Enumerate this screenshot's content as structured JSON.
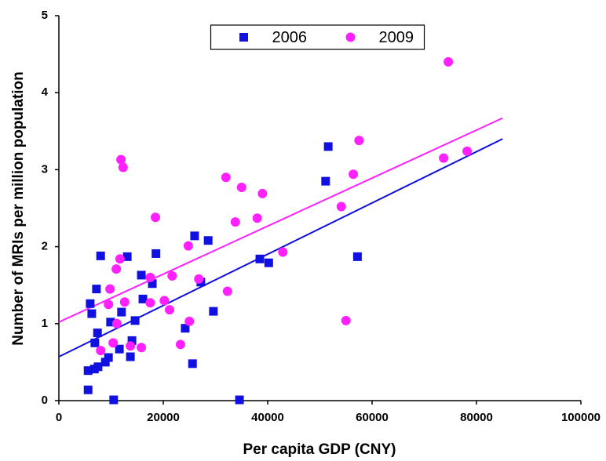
{
  "chart_data": {
    "type": "scatter",
    "x_label": "Per capita GDP (CNY)",
    "y_label": "Number of MRIs per million population",
    "xlim": [
      0,
      100000
    ],
    "ylim": [
      0,
      5
    ],
    "xticks": [
      0,
      20000,
      40000,
      60000,
      80000,
      100000
    ],
    "yticks": [
      0,
      1,
      2,
      3,
      4,
      5
    ],
    "grid": false,
    "legend_position": "top-center",
    "series": [
      {
        "name": "2006",
        "color": "#1010e0",
        "marker": "square",
        "x": [
          5600,
          5600,
          6000,
          6300,
          6800,
          6900,
          7200,
          7400,
          7500,
          8000,
          8900,
          9500,
          9900,
          10500,
          11600,
          12000,
          13100,
          13700,
          14000,
          14600,
          15800,
          16100,
          17900,
          18600,
          24200,
          25600,
          26000,
          27200,
          28600,
          29600,
          34600,
          38500,
          40200,
          51100,
          51600,
          57200
        ],
        "values": [
          0.14,
          0.39,
          1.26,
          1.13,
          0.41,
          0.75,
          1.45,
          0.88,
          0.44,
          1.88,
          0.5,
          0.56,
          1.02,
          0.01,
          0.67,
          1.15,
          1.87,
          0.57,
          0.78,
          1.04,
          1.63,
          1.32,
          1.52,
          1.91,
          0.94,
          0.48,
          2.14,
          1.54,
          2.08,
          1.16,
          0.01,
          1.84,
          1.79,
          2.85,
          3.3,
          1.87
        ]
      },
      {
        "name": "2009",
        "color": "#ff20ff",
        "marker": "circle",
        "x": [
          8000,
          9500,
          9800,
          10400,
          11000,
          11100,
          11700,
          11900,
          12300,
          12600,
          13700,
          15800,
          17500,
          17500,
          18500,
          20200,
          21200,
          21700,
          23300,
          24800,
          25000,
          26800,
          32000,
          32300,
          33800,
          35000,
          38000,
          39000,
          42900,
          54100,
          55000,
          56400,
          57500,
          73700,
          74600,
          78200
        ],
        "values": [
          0.65,
          1.25,
          1.45,
          0.75,
          1.71,
          1.0,
          1.84,
          3.13,
          3.03,
          1.28,
          0.71,
          0.69,
          1.6,
          1.27,
          2.38,
          1.3,
          1.18,
          1.62,
          0.73,
          2.01,
          1.03,
          1.58,
          2.9,
          1.42,
          2.32,
          2.77,
          2.37,
          2.69,
          1.93,
          2.52,
          1.04,
          2.94,
          3.38,
          3.15,
          4.4,
          3.24
        ]
      }
    ],
    "trend_lines": [
      {
        "color": "#1010e0",
        "x": [
          0,
          85000
        ],
        "values": [
          0.57,
          3.4
        ]
      },
      {
        "color": "#ff20ff",
        "x": [
          0,
          85000
        ],
        "values": [
          1.02,
          3.67
        ]
      }
    ]
  }
}
